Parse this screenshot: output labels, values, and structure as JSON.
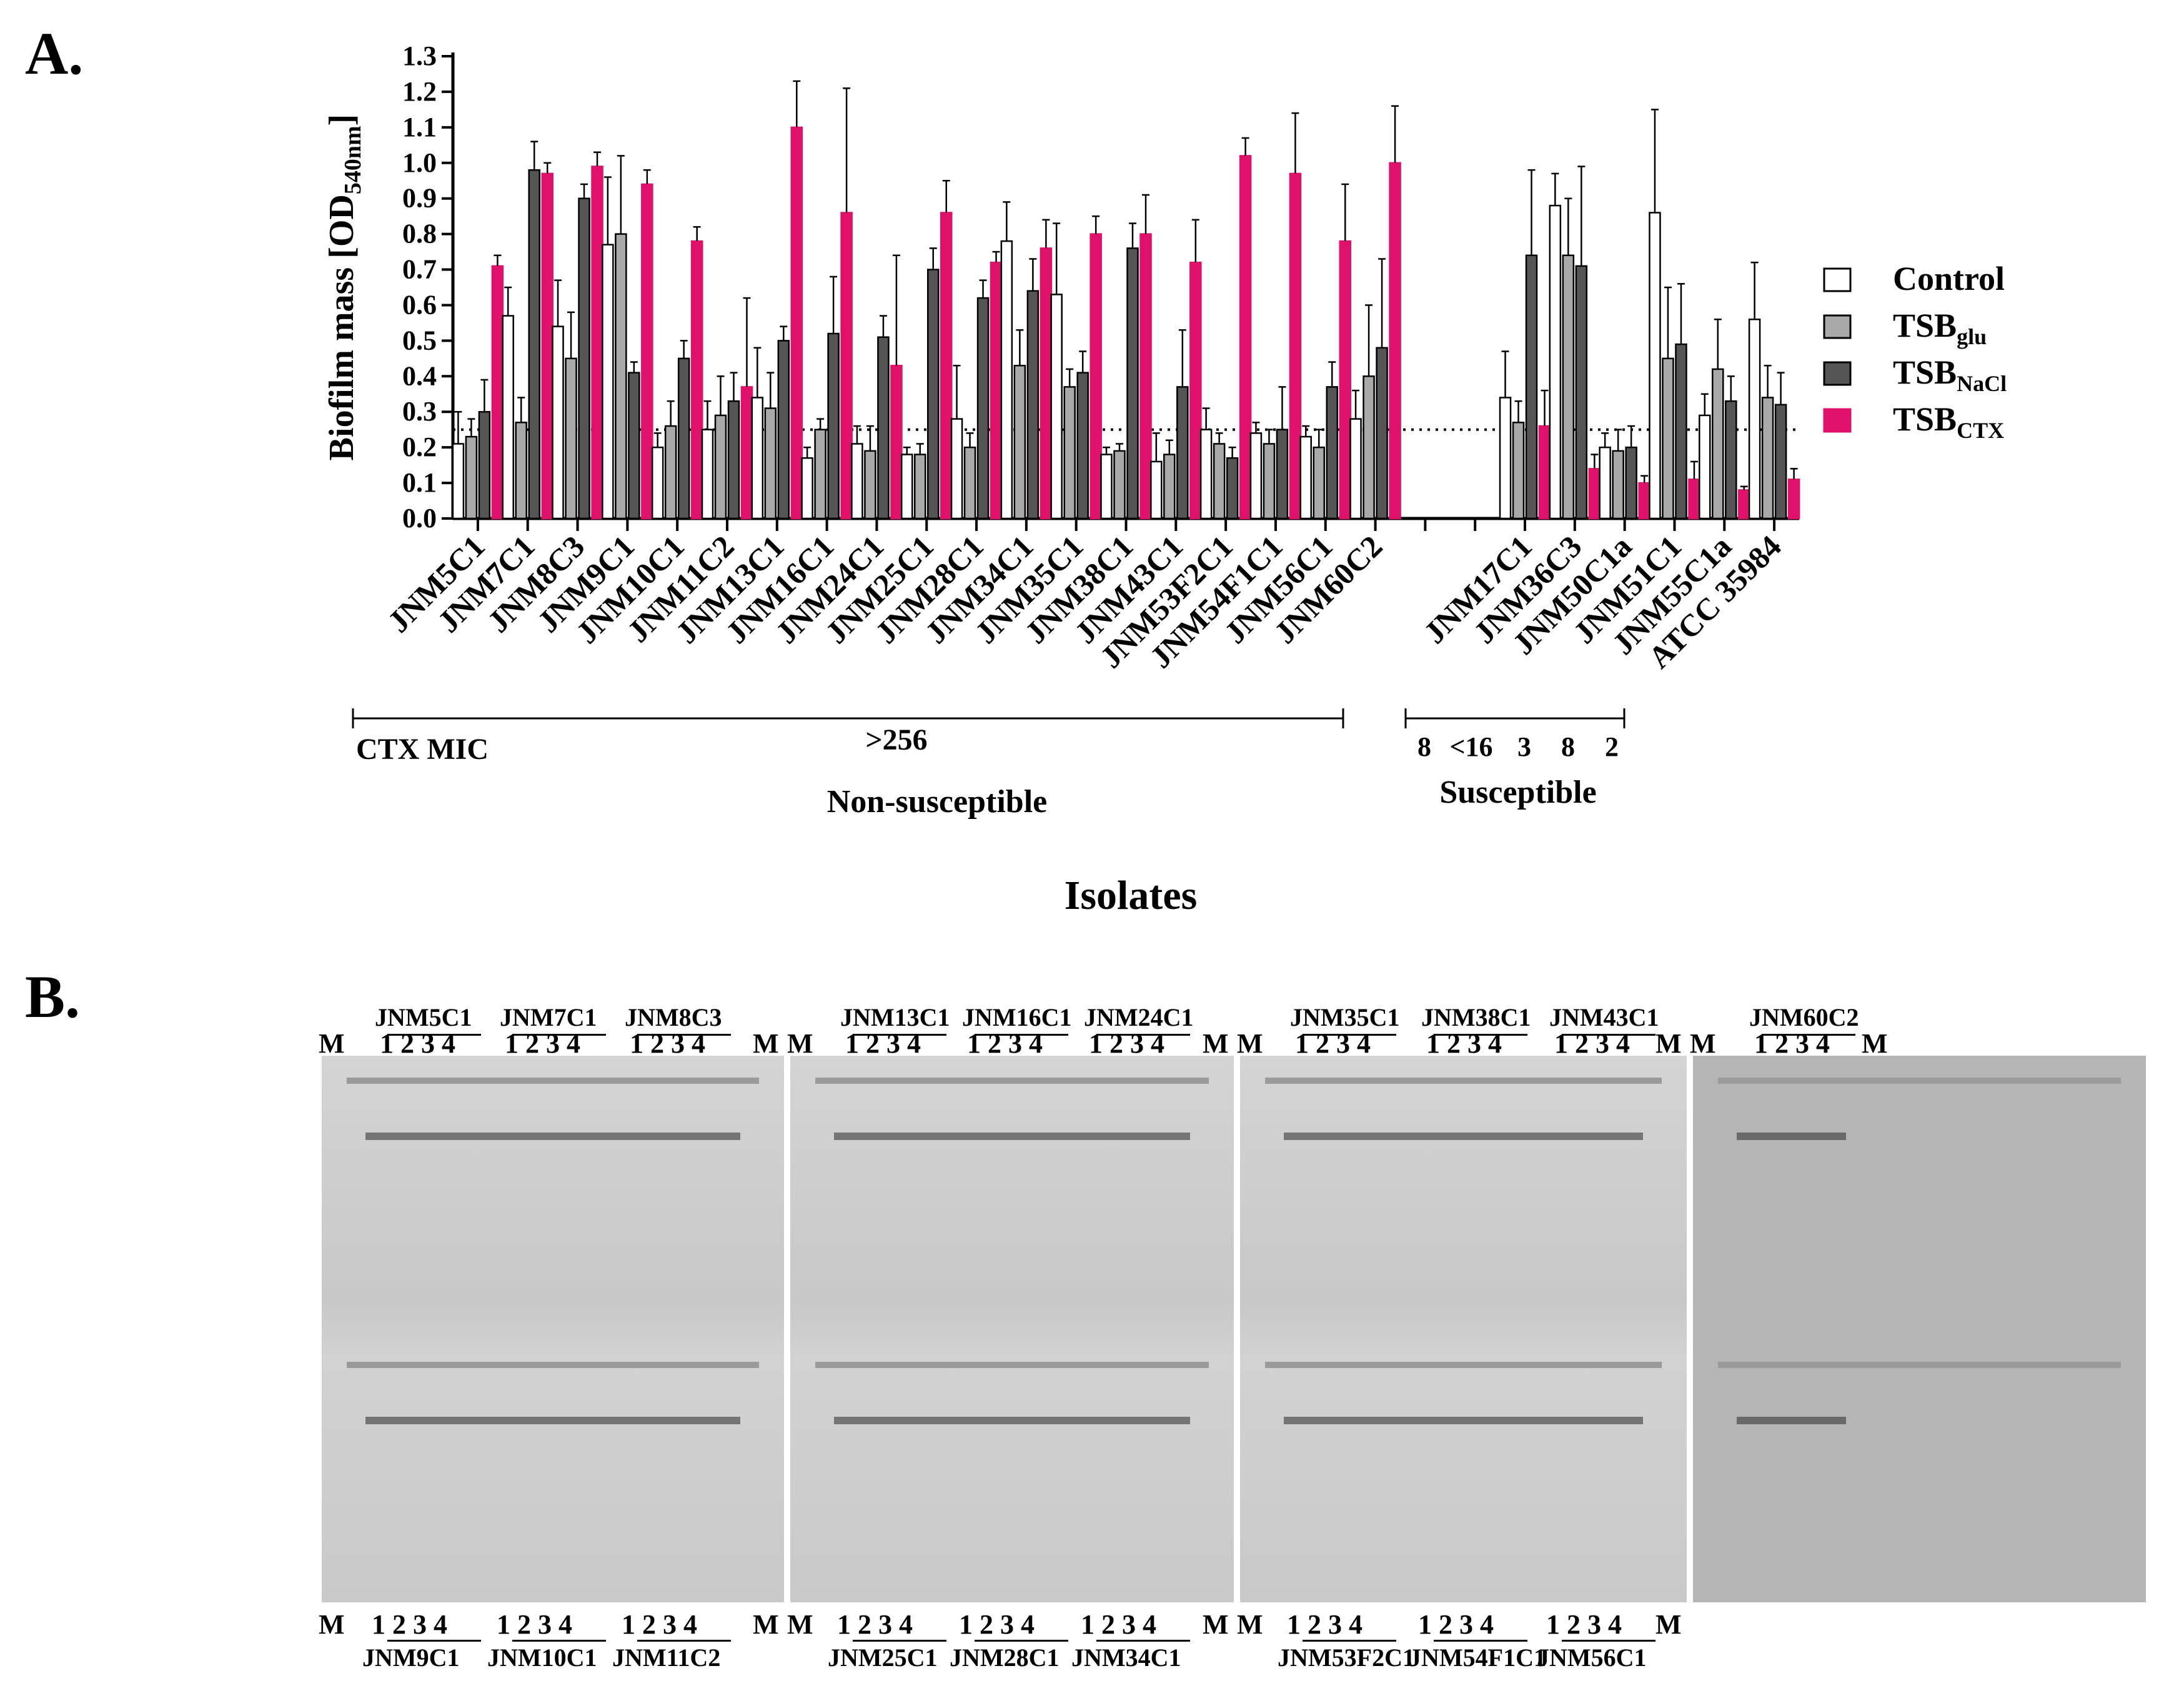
{
  "panel_a_label": "A.",
  "panel_b_label": "B.",
  "chart_data": {
    "type": "bar",
    "ylabel": "Biofilm mass [OD",
    "ylabel_sub": "540nm",
    "ylabel_end": "]",
    "xlabel": "Isolates",
    "ylim": [
      0,
      1.3
    ],
    "yticks": [
      "0.0",
      "0.1",
      "0.2",
      "0.3",
      "0.4",
      "0.5",
      "0.6",
      "0.7",
      "0.8",
      "0.9",
      "1.0",
      "1.1",
      "1.2",
      "1.3"
    ],
    "threshold": 0.25,
    "legend": [
      {
        "base": "Control",
        "sub": "",
        "color": "#ffffff"
      },
      {
        "base": "TSB",
        "sub": "glu",
        "color": "#a9a9a9"
      },
      {
        "base": "TSB",
        "sub": "NaCl",
        "color": "#555555"
      },
      {
        "base": "TSB",
        "sub": "CTX",
        "color": "#e0116b"
      }
    ],
    "legend_position": "right",
    "categories": [
      "JNM5C1",
      "JNM7C1",
      "JNM8C3",
      "JNM9C1",
      "JNM10C1",
      "JNM11C2",
      "JNM13C1",
      "JNM16C1",
      "JNM24C1",
      "JNM25C1",
      "JNM28C1",
      "JNM34C1",
      "JNM35C1",
      "JNM38C1",
      "JNM43C1",
      "JNM53F2C1",
      "JNM54F1C1",
      "JNM56C1",
      "JNM60C2",
      "",
      "",
      "JNM17C1",
      "JNM36C3",
      "JNM50C1a",
      "JNM51C1",
      "JNM55C1a",
      "ATCC 35984"
    ],
    "series": [
      {
        "name": "Control",
        "values": [
          0.21,
          0.57,
          0.54,
          0.77,
          0.2,
          0.25,
          0.34,
          0.17,
          0.21,
          0.18,
          0.28,
          0.78,
          0.63,
          0.18,
          0.16,
          0.25,
          0.24,
          0.23,
          0.28,
          null,
          null,
          0.34,
          0.88,
          0.2,
          0.86,
          0.29,
          0.56
        ]
      },
      {
        "name": "TSBglu",
        "values": [
          0.23,
          0.27,
          0.45,
          0.8,
          0.26,
          0.29,
          0.31,
          0.25,
          0.19,
          0.18,
          0.2,
          0.43,
          0.37,
          0.19,
          0.18,
          0.21,
          0.21,
          0.2,
          0.4,
          null,
          null,
          0.27,
          0.74,
          0.19,
          0.45,
          0.42,
          0.34
        ]
      },
      {
        "name": "TSBNaCl",
        "values": [
          0.3,
          0.98,
          0.9,
          0.41,
          0.45,
          0.33,
          0.5,
          0.52,
          0.51,
          0.7,
          0.62,
          0.64,
          0.41,
          0.76,
          0.37,
          0.17,
          0.25,
          0.37,
          0.48,
          null,
          null,
          0.74,
          0.71,
          0.2,
          0.49,
          0.33,
          0.32
        ]
      },
      {
        "name": "TSBCTX",
        "values": [
          0.71,
          0.97,
          0.99,
          0.94,
          0.78,
          0.37,
          1.1,
          0.86,
          0.43,
          0.86,
          0.72,
          0.76,
          0.8,
          0.8,
          0.72,
          1.02,
          0.97,
          0.78,
          1.0,
          null,
          null,
          0.26,
          0.14,
          0.1,
          0.11,
          0.08,
          0.11
        ]
      }
    ],
    "errors": [
      [
        0.09,
        0.08,
        0.13,
        0.19,
        0.04,
        0.08,
        0.14,
        0.03,
        0.05,
        0.02,
        0.15,
        0.11,
        0.2,
        0.02,
        0.08,
        0.06,
        0.03,
        0.03,
        0.08,
        null,
        null,
        0.13,
        0.09,
        0.04,
        0.29,
        0.06,
        0.16
      ],
      [
        0.05,
        0.07,
        0.13,
        0.22,
        0.07,
        0.11,
        0.1,
        0.03,
        0.07,
        0.03,
        0.04,
        0.1,
        0.05,
        0.02,
        0.04,
        0.03,
        0.04,
        0.05,
        0.2,
        null,
        null,
        0.06,
        0.16,
        0.06,
        0.2,
        0.14,
        0.09
      ],
      [
        0.09,
        0.08,
        0.04,
        0.03,
        0.05,
        0.08,
        0.04,
        0.16,
        0.06,
        0.06,
        0.05,
        0.09,
        0.06,
        0.07,
        0.16,
        0.03,
        0.12,
        0.07,
        0.25,
        null,
        null,
        0.24,
        0.28,
        0.06,
        0.17,
        0.07,
        0.09
      ],
      [
        0.03,
        0.03,
        0.04,
        0.04,
        0.04,
        0.25,
        0.13,
        0.35,
        0.31,
        0.09,
        0.03,
        0.08,
        0.05,
        0.11,
        0.12,
        0.05,
        0.17,
        0.16,
        0.16,
        null,
        null,
        0.1,
        0.04,
        0.02,
        0.05,
        0.01,
        0.03
      ]
    ],
    "groups": [
      {
        "title": "Non-susceptible",
        "mic_heading": "CTX MIC",
        "mic": ">256"
      },
      {
        "title": "Susceptible",
        "mic_values": [
          "8",
          "<16",
          "3",
          "8",
          "2"
        ]
      }
    ]
  },
  "gels": [
    {
      "top_isolates": [
        "JNM5C1",
        "JNM7C1",
        "JNM8C3"
      ],
      "bottom_isolates": [
        "JNM9C1",
        "JNM10C1",
        "JNM11C2"
      ]
    },
    {
      "top_isolates": [
        "JNM13C1",
        "JNM16C1",
        "JNM24C1"
      ],
      "bottom_isolates": [
        "JNM25C1",
        "JNM28C1",
        "JNM34C1"
      ]
    },
    {
      "top_isolates": [
        "JNM35C1",
        "JNM38C1",
        "JNM43C1"
      ],
      "bottom_isolates": [
        "JNM53F2C1",
        "JNM54F1C1",
        "JNM56C1"
      ]
    },
    {
      "top_isolates": [
        "JNM60C2"
      ],
      "bottom_isolates": []
    }
  ],
  "lane_marker": "M",
  "lane_numbers": [
    "1",
    "2",
    "3",
    "4"
  ]
}
